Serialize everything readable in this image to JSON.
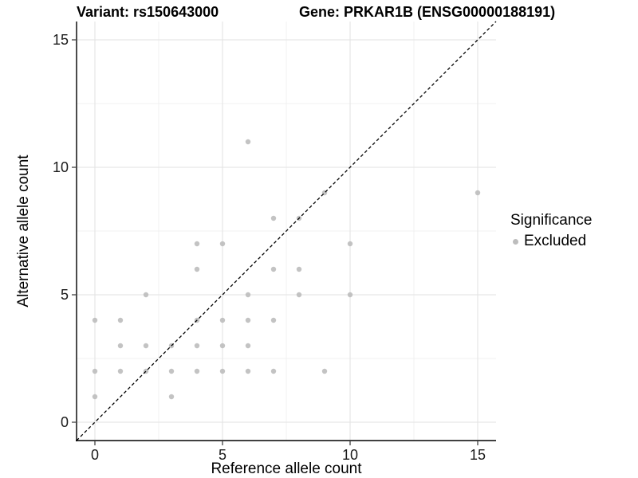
{
  "chart_data": {
    "type": "scatter",
    "titles": {
      "left": "Variant: rs150643000",
      "right": "Gene: PRKAR1B (ENSG00000188191)"
    },
    "xlabel": "Reference allele count",
    "ylabel": "Alternative allele count",
    "xlim": [
      0,
      15
    ],
    "ylim": [
      0,
      15
    ],
    "x_ticks": [
      0,
      5,
      10,
      15
    ],
    "y_ticks": [
      0,
      5,
      10,
      15
    ],
    "minor_ticks": [
      2.5,
      7.5,
      12.5
    ],
    "grid": true,
    "legend_position": "right",
    "legend": {
      "title": "Significance",
      "items": [
        {
          "label": "Excluded",
          "color": "#bdbdbd"
        }
      ]
    },
    "reference_line": {
      "style": "dashed",
      "equation": "y = x",
      "color": "#000000"
    },
    "series": [
      {
        "name": "Excluded",
        "color": "#bdbdbd",
        "points": [
          [
            0,
            1
          ],
          [
            0,
            2
          ],
          [
            0,
            4
          ],
          [
            1,
            2
          ],
          [
            1,
            3
          ],
          [
            1,
            4
          ],
          [
            2,
            2
          ],
          [
            2,
            3
          ],
          [
            2,
            5
          ],
          [
            3,
            1
          ],
          [
            3,
            2
          ],
          [
            3,
            3
          ],
          [
            4,
            2
          ],
          [
            4,
            3
          ],
          [
            4,
            4
          ],
          [
            4,
            6
          ],
          [
            4,
            7
          ],
          [
            5,
            2
          ],
          [
            5,
            3
          ],
          [
            5,
            4
          ],
          [
            5,
            7
          ],
          [
            6,
            2
          ],
          [
            6,
            3
          ],
          [
            6,
            4
          ],
          [
            6,
            5
          ],
          [
            6,
            11
          ],
          [
            7,
            2
          ],
          [
            7,
            4
          ],
          [
            7,
            6
          ],
          [
            7,
            8
          ],
          [
            8,
            5
          ],
          [
            8,
            6
          ],
          [
            8,
            8
          ],
          [
            9,
            2
          ],
          [
            9,
            9
          ],
          [
            10,
            5
          ],
          [
            10,
            7
          ],
          [
            15,
            9
          ]
        ]
      }
    ],
    "style": {
      "grid_major": "#e2e2e2",
      "grid_minor": "#f0f0f0",
      "axis_line": "#000000",
      "tick_mark": "#333333",
      "tick_label": "#1a1a1a",
      "point_opacity": 0.9,
      "point_radius": 3.2
    }
  }
}
